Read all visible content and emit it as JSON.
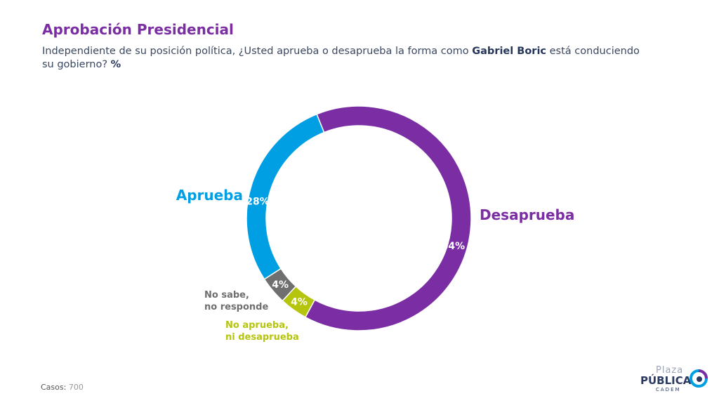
{
  "title": "Aprobación Presidencial",
  "subtitle": {
    "part1": "Independiente de su posición política, ¿Usted aprueba o desaprueba la forma como ",
    "name": "Gabriel Boric",
    "part2": " está conduciendo su gobierno? ",
    "unit": "%"
  },
  "chart_data": {
    "type": "pie",
    "variant": "donut",
    "slices": [
      {
        "label": "Desaprueba",
        "lines": [
          "Desaprueba"
        ],
        "value": 64,
        "value_label": "64%",
        "color": "#7b2da4"
      },
      {
        "label": "No aprueba, ni desaprueba",
        "lines": [
          "No aprueba,",
          "ni desaprueba"
        ],
        "value": 4,
        "value_label": "4%",
        "color": "#b5c40d"
      },
      {
        "label": "No sabe, no responde",
        "lines": [
          "No sabe,",
          "no responde"
        ],
        "value": 4,
        "value_label": "4%",
        "color": "#6f6f6f"
      },
      {
        "label": "Aprueba",
        "lines": [
          "Aprueba"
        ],
        "value": 28,
        "value_label": "28%",
        "color": "#009fe3"
      }
    ]
  },
  "footer": {
    "label": "Casos",
    "value": "700"
  },
  "logo": {
    "line1": "Plaza",
    "line2": "PÚBLICA",
    "line3": "CADEM"
  }
}
